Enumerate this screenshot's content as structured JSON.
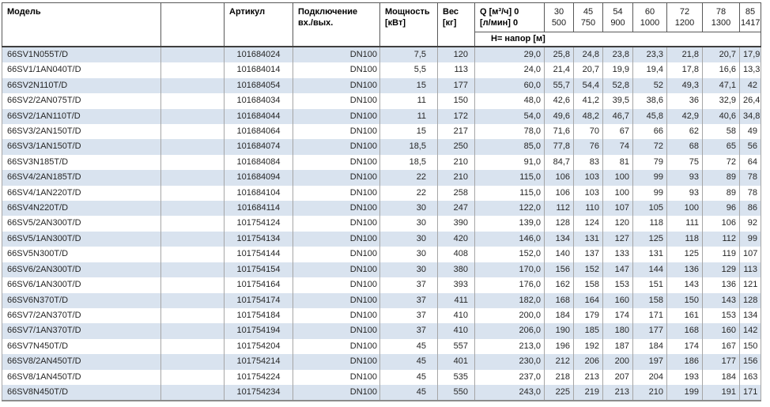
{
  "table": {
    "headers": {
      "model": "Модель",
      "article": "Артикул",
      "connection_line1": "Подключение",
      "connection_line2": "вх./вых.",
      "power_line1": "Мощность",
      "power_line2": "[кВт]",
      "weight_line1": "Вес",
      "weight_line2": "[кг]",
      "q_line1": "Q [м³/ч] 0",
      "q_line2": "[л/мин] 0",
      "head_subheader": "Н= напор [м]",
      "flow_columns": [
        {
          "m3h": "30",
          "lmin": "500"
        },
        {
          "m3h": "45",
          "lmin": "750"
        },
        {
          "m3h": "54",
          "lmin": "900"
        },
        {
          "m3h": "60",
          "lmin": "1000"
        },
        {
          "m3h": "72",
          "lmin": "1200"
        },
        {
          "m3h": "78",
          "lmin": "1300"
        },
        {
          "m3h": "85",
          "lmin": "1417"
        }
      ]
    },
    "rows": [
      {
        "model": "66SV1N055T/D",
        "article": "101684024",
        "connection": "DN100",
        "power": "7,5",
        "weight": "120",
        "q0": "29,0",
        "head": [
          "25,8",
          "24,8",
          "23,8",
          "23,3",
          "21,8",
          "20,7",
          "17,9"
        ]
      },
      {
        "model": "66SV1/1AN040T/D",
        "article": "101684014",
        "connection": "DN100",
        "power": "5,5",
        "weight": "113",
        "q0": "24,0",
        "head": [
          "21,4",
          "20,7",
          "19,9",
          "19,4",
          "17,8",
          "16,6",
          "13,3"
        ]
      },
      {
        "model": "66SV2N110T/D",
        "article": "101684054",
        "connection": "DN100",
        "power": "15",
        "weight": "177",
        "q0": "60,0",
        "head": [
          "55,7",
          "54,4",
          "52,8",
          "52",
          "49,3",
          "47,1",
          "42"
        ]
      },
      {
        "model": "66SV2/2AN075T/D",
        "article": "101684034",
        "connection": "DN100",
        "power": "11",
        "weight": "150",
        "q0": "48,0",
        "head": [
          "42,6",
          "41,2",
          "39,5",
          "38,6",
          "36",
          "32,9",
          "26,4"
        ]
      },
      {
        "model": "66SV2/1AN110T/D",
        "article": "101684044",
        "connection": "DN100",
        "power": "11",
        "weight": "172",
        "q0": "54,0",
        "head": [
          "49,6",
          "48,2",
          "46,7",
          "45,8",
          "42,9",
          "40,6",
          "34,8"
        ]
      },
      {
        "model": "66SV3/2AN150T/D",
        "article": "101684064",
        "connection": "DN100",
        "power": "15",
        "weight": "217",
        "q0": "78,0",
        "head": [
          "71,6",
          "70",
          "67",
          "66",
          "62",
          "58",
          "49"
        ]
      },
      {
        "model": "66SV3/1AN150T/D",
        "article": "101684074",
        "connection": "DN100",
        "power": "18,5",
        "weight": "250",
        "q0": "85,0",
        "head": [
          "77,8",
          "76",
          "74",
          "72",
          "68",
          "65",
          "56"
        ]
      },
      {
        "model": "66SV3N185T/D",
        "article": "101684084",
        "connection": "DN100",
        "power": "18,5",
        "weight": "210",
        "q0": "91,0",
        "head": [
          "84,7",
          "83",
          "81",
          "79",
          "75",
          "72",
          "64"
        ]
      },
      {
        "model": "66SV4/2AN185T/D",
        "article": "101684094",
        "connection": "DN100",
        "power": "22",
        "weight": "210",
        "q0": "115,0",
        "head": [
          "106",
          "103",
          "100",
          "99",
          "93",
          "89",
          "78"
        ]
      },
      {
        "model": "66SV4/1AN220T/D",
        "article": "101684104",
        "connection": "DN100",
        "power": "22",
        "weight": "258",
        "q0": "115,0",
        "head": [
          "106",
          "103",
          "100",
          "99",
          "93",
          "89",
          "78"
        ]
      },
      {
        "model": "66SV4N220T/D",
        "article": "101684114",
        "connection": "DN100",
        "power": "30",
        "weight": "247",
        "q0": "122,0",
        "head": [
          "112",
          "110",
          "107",
          "105",
          "100",
          "96",
          "86"
        ]
      },
      {
        "model": "66SV5/2AN300T/D",
        "article": "101754124",
        "connection": "DN100",
        "power": "30",
        "weight": "390",
        "q0": "139,0",
        "head": [
          "128",
          "124",
          "120",
          "118",
          "111",
          "106",
          "92"
        ]
      },
      {
        "model": "66SV5/1AN300T/D",
        "article": "101754134",
        "connection": "DN100",
        "power": "30",
        "weight": "420",
        "q0": "146,0",
        "head": [
          "134",
          "131",
          "127",
          "125",
          "118",
          "112",
          "99"
        ]
      },
      {
        "model": "66SV5N300T/D",
        "article": "101754144",
        "connection": "DN100",
        "power": "30",
        "weight": "408",
        "q0": "152,0",
        "head": [
          "140",
          "137",
          "133",
          "131",
          "125",
          "119",
          "107"
        ]
      },
      {
        "model": "66SV6/2AN300T/D",
        "article": "101754154",
        "connection": "DN100",
        "power": "30",
        "weight": "380",
        "q0": "170,0",
        "head": [
          "156",
          "152",
          "147",
          "144",
          "136",
          "129",
          "113"
        ]
      },
      {
        "model": "66SV6/1AN300T/D",
        "article": "101754164",
        "connection": "DN100",
        "power": "37",
        "weight": "393",
        "q0": "176,0",
        "head": [
          "162",
          "158",
          "153",
          "151",
          "143",
          "136",
          "121"
        ]
      },
      {
        "model": "66SV6N370T/D",
        "article": "101754174",
        "connection": "DN100",
        "power": "37",
        "weight": "411",
        "q0": "182,0",
        "head": [
          "168",
          "164",
          "160",
          "158",
          "150",
          "143",
          "128"
        ]
      },
      {
        "model": "66SV7/2AN370T/D",
        "article": "101754184",
        "connection": "DN100",
        "power": "37",
        "weight": "410",
        "q0": "200,0",
        "head": [
          "184",
          "179",
          "174",
          "171",
          "161",
          "153",
          "134"
        ]
      },
      {
        "model": "66SV7/1AN370T/D",
        "article": "101754194",
        "connection": "DN100",
        "power": "37",
        "weight": "410",
        "q0": "206,0",
        "head": [
          "190",
          "185",
          "180",
          "177",
          "168",
          "160",
          "142"
        ]
      },
      {
        "model": "66SV7N450T/D",
        "article": "101754204",
        "connection": "DN100",
        "power": "45",
        "weight": "557",
        "q0": "213,0",
        "head": [
          "196",
          "192",
          "187",
          "184",
          "174",
          "167",
          "150"
        ]
      },
      {
        "model": "66SV8/2AN450T/D",
        "article": "101754214",
        "connection": "DN100",
        "power": "45",
        "weight": "401",
        "q0": "230,0",
        "head": [
          "212",
          "206",
          "200",
          "197",
          "186",
          "177",
          "156"
        ]
      },
      {
        "model": "66SV8/1AN450T/D",
        "article": "101754224",
        "connection": "DN100",
        "power": "45",
        "weight": "535",
        "q0": "237,0",
        "head": [
          "218",
          "213",
          "207",
          "204",
          "193",
          "184",
          "163"
        ]
      },
      {
        "model": "66SV8N450T/D",
        "article": "101754234",
        "connection": "DN100",
        "power": "45",
        "weight": "550",
        "q0": "243,0",
        "head": [
          "225",
          "219",
          "213",
          "210",
          "199",
          "191",
          "171"
        ]
      }
    ]
  },
  "colors": {
    "stripe_blue": "#d9e3ef",
    "header_border": "#595959",
    "header_bottom_border": "#3f3f3f",
    "body_divider": "#a6a6a6",
    "table_bottom_border": "#8c8c8c",
    "text": "#262626"
  }
}
